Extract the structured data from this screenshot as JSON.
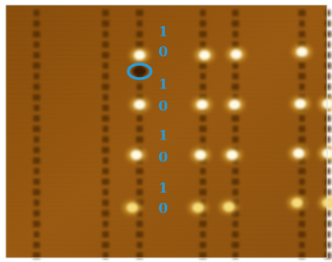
{
  "labels": [
    {
      "top": "1",
      "bottom": "0"
    },
    {
      "top": "1",
      "bottom": "0"
    },
    {
      "top": "1",
      "bottom": "0"
    },
    {
      "top": "1",
      "bottom": "0"
    }
  ]
}
